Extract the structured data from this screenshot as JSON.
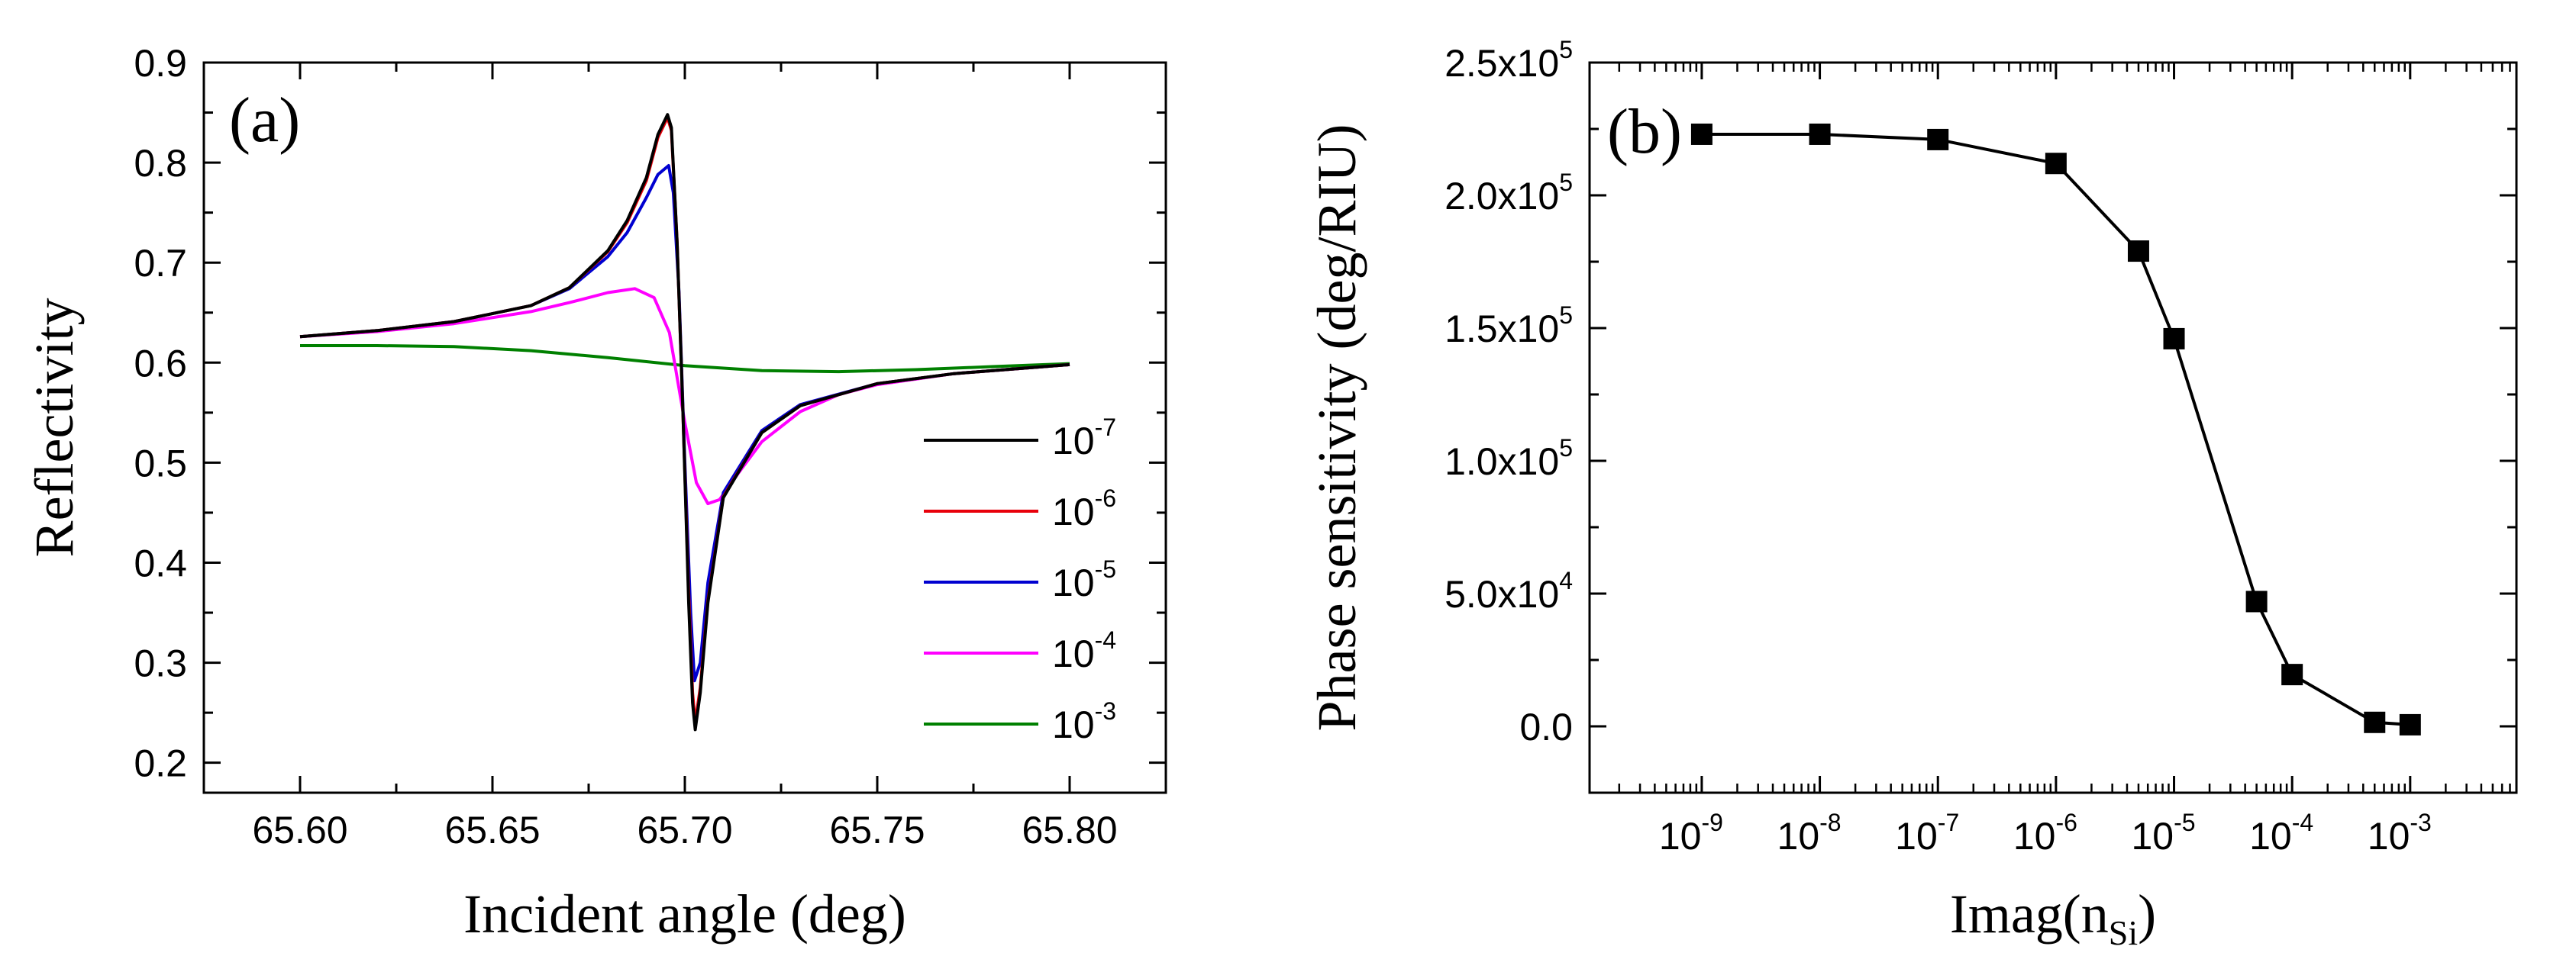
{
  "chart_data": [
    {
      "type": "line",
      "panel_label": "(a)",
      "xlabel": "Incident angle (deg)",
      "ylabel": "Reflectivity",
      "xlim": [
        65.575,
        65.825
      ],
      "ylim": [
        0.17,
        0.9
      ],
      "xticks": [
        "65.60",
        "65.65",
        "65.70",
        "65.75",
        "65.80"
      ],
      "xtick_values": [
        65.6,
        65.65,
        65.7,
        65.75,
        65.8
      ],
      "yticks": [
        "0.2",
        "0.3",
        "0.4",
        "0.5",
        "0.6",
        "0.7",
        "0.8",
        "0.9"
      ],
      "ytick_values": [
        0.2,
        0.3,
        0.4,
        0.5,
        0.6,
        0.7,
        0.8,
        0.9
      ],
      "legend_position": "bottom-right",
      "series": [
        {
          "name": "10",
          "exponent": "-7",
          "color": "#000000",
          "x": [
            65.6,
            65.62,
            65.64,
            65.66,
            65.67,
            65.68,
            65.685,
            65.69,
            65.693,
            65.6955,
            65.6965,
            65.698,
            65.6995,
            65.701,
            65.702,
            65.7027,
            65.704,
            65.706,
            65.71,
            65.72,
            65.73,
            65.75,
            65.77,
            65.8
          ],
          "values": [
            0.626,
            0.632,
            0.641,
            0.657,
            0.675,
            0.712,
            0.742,
            0.785,
            0.828,
            0.848,
            0.835,
            0.72,
            0.55,
            0.36,
            0.26,
            0.233,
            0.27,
            0.36,
            0.465,
            0.53,
            0.557,
            0.579,
            0.589,
            0.598
          ]
        },
        {
          "name": "10",
          "exponent": "-6",
          "color": "#e8000b",
          "x": [
            65.6,
            65.62,
            65.64,
            65.66,
            65.67,
            65.68,
            65.685,
            65.69,
            65.693,
            65.6955,
            65.6965,
            65.698,
            65.6995,
            65.701,
            65.702,
            65.7027,
            65.704,
            65.706,
            65.71,
            65.72,
            65.73,
            65.75,
            65.77,
            65.8
          ],
          "values": [
            0.626,
            0.632,
            0.641,
            0.657,
            0.675,
            0.711,
            0.74,
            0.782,
            0.825,
            0.845,
            0.832,
            0.72,
            0.55,
            0.37,
            0.27,
            0.24,
            0.275,
            0.362,
            0.466,
            0.53,
            0.557,
            0.579,
            0.589,
            0.598
          ]
        },
        {
          "name": "10",
          "exponent": "-5",
          "color": "#0000d0",
          "x": [
            65.6,
            65.62,
            65.64,
            65.66,
            65.67,
            65.68,
            65.685,
            65.69,
            65.693,
            65.6958,
            65.697,
            65.6985,
            65.7,
            65.7015,
            65.7025,
            65.704,
            65.706,
            65.71,
            65.72,
            65.73,
            65.75,
            65.77,
            65.8
          ],
          "values": [
            0.626,
            0.632,
            0.641,
            0.657,
            0.674,
            0.706,
            0.73,
            0.765,
            0.788,
            0.797,
            0.77,
            0.67,
            0.5,
            0.35,
            0.282,
            0.3,
            0.38,
            0.47,
            0.532,
            0.558,
            0.579,
            0.589,
            0.598
          ]
        },
        {
          "name": "10",
          "exponent": "-4",
          "color": "#ff00ff",
          "x": [
            65.6,
            65.62,
            65.64,
            65.66,
            65.67,
            65.68,
            65.687,
            65.692,
            65.696,
            65.7,
            65.703,
            65.706,
            65.709,
            65.714,
            65.72,
            65.73,
            65.74,
            65.75,
            65.77,
            65.8
          ],
          "values": [
            0.626,
            0.631,
            0.639,
            0.651,
            0.66,
            0.67,
            0.674,
            0.665,
            0.63,
            0.54,
            0.48,
            0.459,
            0.463,
            0.49,
            0.521,
            0.551,
            0.568,
            0.578,
            0.589,
            0.598
          ]
        },
        {
          "name": "10",
          "exponent": "-3",
          "color": "#008000",
          "x": [
            65.6,
            65.62,
            65.64,
            65.66,
            65.68,
            65.7,
            65.72,
            65.74,
            65.76,
            65.78,
            65.8
          ],
          "values": [
            0.617,
            0.617,
            0.616,
            0.612,
            0.605,
            0.597,
            0.592,
            0.591,
            0.593,
            0.596,
            0.599
          ]
        }
      ]
    },
    {
      "type": "line",
      "log_x": true,
      "panel_label": "(b)",
      "xlabel_main": "Imag(n",
      "xlabel_sub": "Si",
      "xlabel_close": ")",
      "ylabel": "Phase sensitivity (deg/RIU)",
      "xlim_log10": [
        -9.95,
        -2.1
      ],
      "ylim": [
        -25000,
        250000
      ],
      "xtick_exponents": [
        "-9",
        "-8",
        "-7",
        "-6",
        "-5",
        "-4",
        "-3"
      ],
      "xtick_base": "10",
      "ytick_values": [
        0,
        50000,
        100000,
        150000,
        200000,
        250000
      ],
      "ytick_labels": [
        {
          "mantissa": "0.0",
          "exp": ""
        },
        {
          "mantissa": "5.0x10",
          "exp": "4"
        },
        {
          "mantissa": "1.0x10",
          "exp": "5"
        },
        {
          "mantissa": "1.5x10",
          "exp": "5"
        },
        {
          "mantissa": "2.0x10",
          "exp": "5"
        },
        {
          "mantissa": "2.5x10",
          "exp": "5"
        }
      ],
      "series": [
        {
          "name": "phase sensitivity",
          "color": "#000000",
          "x": [
            1e-09,
            1e-08,
            1e-07,
            1e-06,
            5e-06,
            1e-05,
            5e-05,
            0.0001,
            0.0005,
            0.001
          ],
          "values": [
            223000,
            223000,
            221000,
            212000,
            179000,
            146000,
            47000,
            19500,
            1500,
            600
          ]
        }
      ]
    }
  ]
}
